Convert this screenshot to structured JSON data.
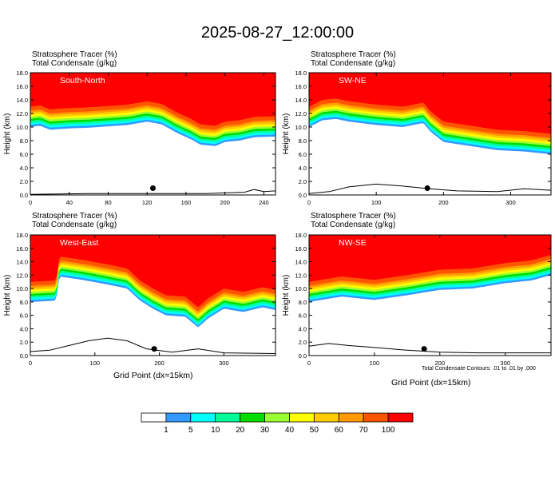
{
  "title": "2025-08-27_12:00:00",
  "header_line1": "Stratosphere Tracer    (%)",
  "header_line2": "Total Condensate    (g/kg)",
  "xlabel": "Grid Point (dx=15km)",
  "ylabel": "Height (km)",
  "contour_note": "Total Condensate Contours: .01 to .01 by .000",
  "colors": {
    "levels": [
      "#ffffff",
      "#3399ff",
      "#00ffff",
      "#00ff99",
      "#00dd00",
      "#99ff33",
      "#ffff00",
      "#ffcc00",
      "#ff9900",
      "#ff5500",
      "#ff0000"
    ],
    "marker": "#000000"
  },
  "colorbar_labels": [
    "1",
    "5",
    "10",
    "20",
    "30",
    "40",
    "50",
    "60",
    "70",
    "100"
  ],
  "chart_data": [
    {
      "type": "heatmap",
      "name": "South-North",
      "xlim": [
        0,
        252
      ],
      "ylim": [
        0,
        18
      ],
      "xticks": [
        0,
        40,
        80,
        120,
        160,
        200,
        240
      ],
      "yticks": [
        0.0,
        2.0,
        4.0,
        6.0,
        8.0,
        10.0,
        12.0,
        14.0,
        16.0,
        18.0
      ],
      "tropopause_profile": [
        [
          0,
          13.0
        ],
        [
          10,
          13.2
        ],
        [
          20,
          12.6
        ],
        [
          40,
          12.8
        ],
        [
          60,
          12.9
        ],
        [
          80,
          13.1
        ],
        [
          100,
          13.3
        ],
        [
          120,
          13.8
        ],
        [
          135,
          13.4
        ],
        [
          150,
          12.2
        ],
        [
          165,
          11.2
        ],
        [
          175,
          10.4
        ],
        [
          190,
          10.2
        ],
        [
          200,
          10.8
        ],
        [
          215,
          11.0
        ],
        [
          230,
          11.5
        ],
        [
          252,
          11.6
        ]
      ],
      "terrain_profile": [
        [
          0,
          0.1
        ],
        [
          60,
          0.2
        ],
        [
          120,
          0.2
        ],
        [
          180,
          0.2
        ],
        [
          220,
          0.4
        ],
        [
          230,
          0.8
        ],
        [
          240,
          0.5
        ],
        [
          252,
          0.6
        ]
      ],
      "marker_x": 126
    },
    {
      "type": "heatmap",
      "name": "SW-NE",
      "xlim": [
        0,
        360
      ],
      "ylim": [
        0,
        18
      ],
      "xticks": [
        0,
        100,
        200,
        300
      ],
      "yticks": [
        0.0,
        2.0,
        4.0,
        6.0,
        8.0,
        10.0,
        12.0,
        14.0,
        16.0,
        18.0
      ],
      "tropopause_profile": [
        [
          0,
          13.0
        ],
        [
          20,
          14.0
        ],
        [
          40,
          14.2
        ],
        [
          60,
          13.8
        ],
        [
          100,
          13.3
        ],
        [
          140,
          13.0
        ],
        [
          170,
          13.6
        ],
        [
          180,
          12.4
        ],
        [
          200,
          10.8
        ],
        [
          240,
          10.2
        ],
        [
          280,
          9.6
        ],
        [
          320,
          9.4
        ],
        [
          360,
          9.0
        ]
      ],
      "terrain_profile": [
        [
          0,
          0.2
        ],
        [
          30,
          0.5
        ],
        [
          60,
          1.2
        ],
        [
          100,
          1.6
        ],
        [
          140,
          1.3
        ],
        [
          180,
          0.9
        ],
        [
          220,
          0.6
        ],
        [
          280,
          0.5
        ],
        [
          320,
          0.9
        ],
        [
          360,
          0.7
        ]
      ],
      "marker_x": 176
    },
    {
      "type": "heatmap",
      "name": "West-East",
      "xlim": [
        0,
        380
      ],
      "ylim": [
        0,
        18
      ],
      "xticks": [
        0,
        100,
        200,
        300
      ],
      "yticks": [
        0.0,
        2.0,
        4.0,
        6.0,
        8.0,
        10.0,
        12.0,
        14.0,
        16.0,
        18.0
      ],
      "tropopause_profile": [
        [
          0,
          11.0
        ],
        [
          40,
          11.2
        ],
        [
          45,
          14.8
        ],
        [
          80,
          14.3
        ],
        [
          120,
          13.6
        ],
        [
          150,
          13.0
        ],
        [
          170,
          11.2
        ],
        [
          190,
          10.0
        ],
        [
          210,
          9.0
        ],
        [
          240,
          8.8
        ],
        [
          260,
          7.2
        ],
        [
          275,
          8.5
        ],
        [
          300,
          10.0
        ],
        [
          330,
          9.5
        ],
        [
          360,
          10.2
        ],
        [
          380,
          9.8
        ]
      ],
      "terrain_profile": [
        [
          0,
          0.6
        ],
        [
          30,
          0.8
        ],
        [
          60,
          1.5
        ],
        [
          90,
          2.2
        ],
        [
          120,
          2.6
        ],
        [
          150,
          2.2
        ],
        [
          180,
          1.0
        ],
        [
          220,
          0.5
        ],
        [
          260,
          1.0
        ],
        [
          300,
          0.4
        ],
        [
          380,
          0.3
        ]
      ],
      "marker_x": 192
    },
    {
      "type": "heatmap",
      "name": "NW-SE",
      "xlim": [
        0,
        370
      ],
      "ylim": [
        0,
        18
      ],
      "xticks": [
        0,
        100,
        200,
        300
      ],
      "yticks": [
        0.0,
        2.0,
        4.0,
        6.0,
        8.0,
        10.0,
        12.0,
        14.0,
        16.0,
        18.0
      ],
      "tropopause_profile": [
        [
          0,
          11.0
        ],
        [
          50,
          11.8
        ],
        [
          100,
          11.3
        ],
        [
          150,
          12.0
        ],
        [
          200,
          12.8
        ],
        [
          250,
          13.0
        ],
        [
          300,
          13.8
        ],
        [
          340,
          14.2
        ],
        [
          370,
          15.0
        ]
      ],
      "terrain_profile": [
        [
          0,
          1.4
        ],
        [
          30,
          1.8
        ],
        [
          60,
          1.5
        ],
        [
          100,
          1.2
        ],
        [
          150,
          0.8
        ],
        [
          200,
          0.5
        ],
        [
          260,
          0.4
        ],
        [
          320,
          0.4
        ],
        [
          370,
          0.4
        ]
      ],
      "marker_x": 176
    }
  ]
}
